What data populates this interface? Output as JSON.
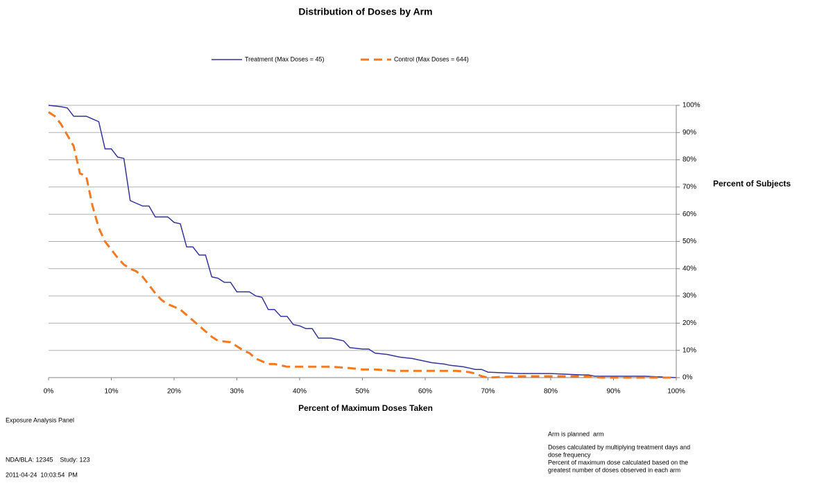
{
  "chart_data": {
    "type": "line",
    "title": "Distribution of Doses by Arm",
    "x_label": "Percent of Maximum Doses Taken",
    "y_label": "Percent of Subjects",
    "y_axis_side": "right",
    "grid": true,
    "xlim": [
      0,
      100
    ],
    "ylim": [
      0,
      100
    ],
    "xticks": [
      {
        "value": 0,
        "label": "0%"
      },
      {
        "value": 10,
        "label": "10%"
      },
      {
        "value": 20,
        "label": "20%"
      },
      {
        "value": 30,
        "label": "30%"
      },
      {
        "value": 40,
        "label": "40%"
      },
      {
        "value": 50,
        "label": "50%"
      },
      {
        "value": 60,
        "label": "60%"
      },
      {
        "value": 70,
        "label": "70%"
      },
      {
        "value": 80,
        "label": "80%"
      },
      {
        "value": 90,
        "label": "90%"
      },
      {
        "value": 100,
        "label": "100%"
      }
    ],
    "yticks": [
      {
        "value": 0,
        "label": "0%"
      },
      {
        "value": 10,
        "label": "10%"
      },
      {
        "value": 20,
        "label": "20%"
      },
      {
        "value": 30,
        "label": "30%"
      },
      {
        "value": 40,
        "label": "40%"
      },
      {
        "value": 50,
        "label": "50%"
      },
      {
        "value": 60,
        "label": "60%"
      },
      {
        "value": 70,
        "label": "70%"
      },
      {
        "value": 80,
        "label": "80%"
      },
      {
        "value": 90,
        "label": "90%"
      },
      {
        "value": 100,
        "label": "100%"
      }
    ],
    "series": [
      {
        "name": "Treatment (Max Doses = 45)",
        "color": "#333399",
        "line_style": "solid",
        "x": [
          0,
          2,
          3,
          4,
          6,
          7,
          8,
          9,
          10,
          11,
          12,
          13,
          14,
          15,
          16,
          17,
          19,
          20,
          21,
          22,
          23,
          24,
          25,
          26,
          27,
          28,
          29,
          30,
          32,
          33,
          34,
          35,
          36,
          37,
          38,
          39,
          40,
          41,
          42,
          43,
          45,
          46,
          47,
          48,
          50,
          51,
          52,
          54,
          55,
          56,
          58,
          59,
          60,
          61,
          63,
          64,
          66,
          67,
          68,
          69,
          70,
          75,
          80,
          85,
          86,
          87,
          95,
          100
        ],
        "values": [
          100,
          99.5,
          99,
          96,
          96,
          95,
          94,
          84,
          84,
          81,
          80.5,
          65,
          64,
          63,
          63,
          59,
          59,
          57,
          56.5,
          48,
          48,
          45,
          45,
          37,
          36.5,
          35,
          35,
          31.5,
          31.5,
          30,
          29.5,
          25,
          25,
          22.5,
          22.5,
          19.5,
          19,
          18,
          18,
          14.5,
          14.5,
          14,
          13.5,
          11,
          10.5,
          10.5,
          9,
          8.5,
          8,
          7.5,
          7,
          6.5,
          6,
          5.5,
          5,
          4.5,
          4,
          3.5,
          3,
          3,
          2,
          1.5,
          1.5,
          1,
          1,
          0.5,
          0.5,
          0
        ]
      },
      {
        "name": "Control (Max Doses = 644)",
        "color": "#f47920",
        "line_style": "dashed",
        "x": [
          0,
          1,
          2,
          3,
          4,
          5,
          6,
          7,
          8,
          9,
          10,
          11,
          12,
          13,
          14,
          15,
          16,
          17,
          18,
          19,
          20,
          21,
          22,
          23,
          24,
          25,
          26,
          27,
          29,
          30,
          31,
          32,
          33,
          34,
          35,
          36,
          37,
          38,
          45,
          48,
          50,
          52,
          55,
          60,
          65,
          67,
          68,
          69,
          70,
          75,
          80,
          85,
          88,
          90,
          95,
          100
        ],
        "values": [
          97.5,
          96,
          93,
          89,
          85,
          75,
          74,
          63,
          55,
          50,
          47,
          44,
          41.5,
          40,
          39,
          37,
          34,
          31,
          28.5,
          27,
          26,
          25,
          23,
          21,
          19,
          17,
          15,
          13.5,
          13,
          11.5,
          10,
          9,
          7,
          6,
          5,
          5,
          4.5,
          4,
          4,
          3.5,
          3,
          3,
          2.5,
          2.5,
          2.5,
          2,
          1.5,
          0.5,
          0,
          0.5,
          0.5,
          0.5,
          0,
          0,
          0,
          0
        ]
      }
    ],
    "footnotes_left": [
      "Exposure Analysis Panel",
      "NDA/BLA: 12345    Study: 123",
      "2011-04-24  10:03:54  PM"
    ],
    "footnotes_right": [
      "Arm is planned  arm",
      "Doses calculated by multiplying treatment days and",
      "dose frequency",
      "Percent of maximum dose calculated based on the",
      "greatest number of doses observed in each arm"
    ]
  }
}
